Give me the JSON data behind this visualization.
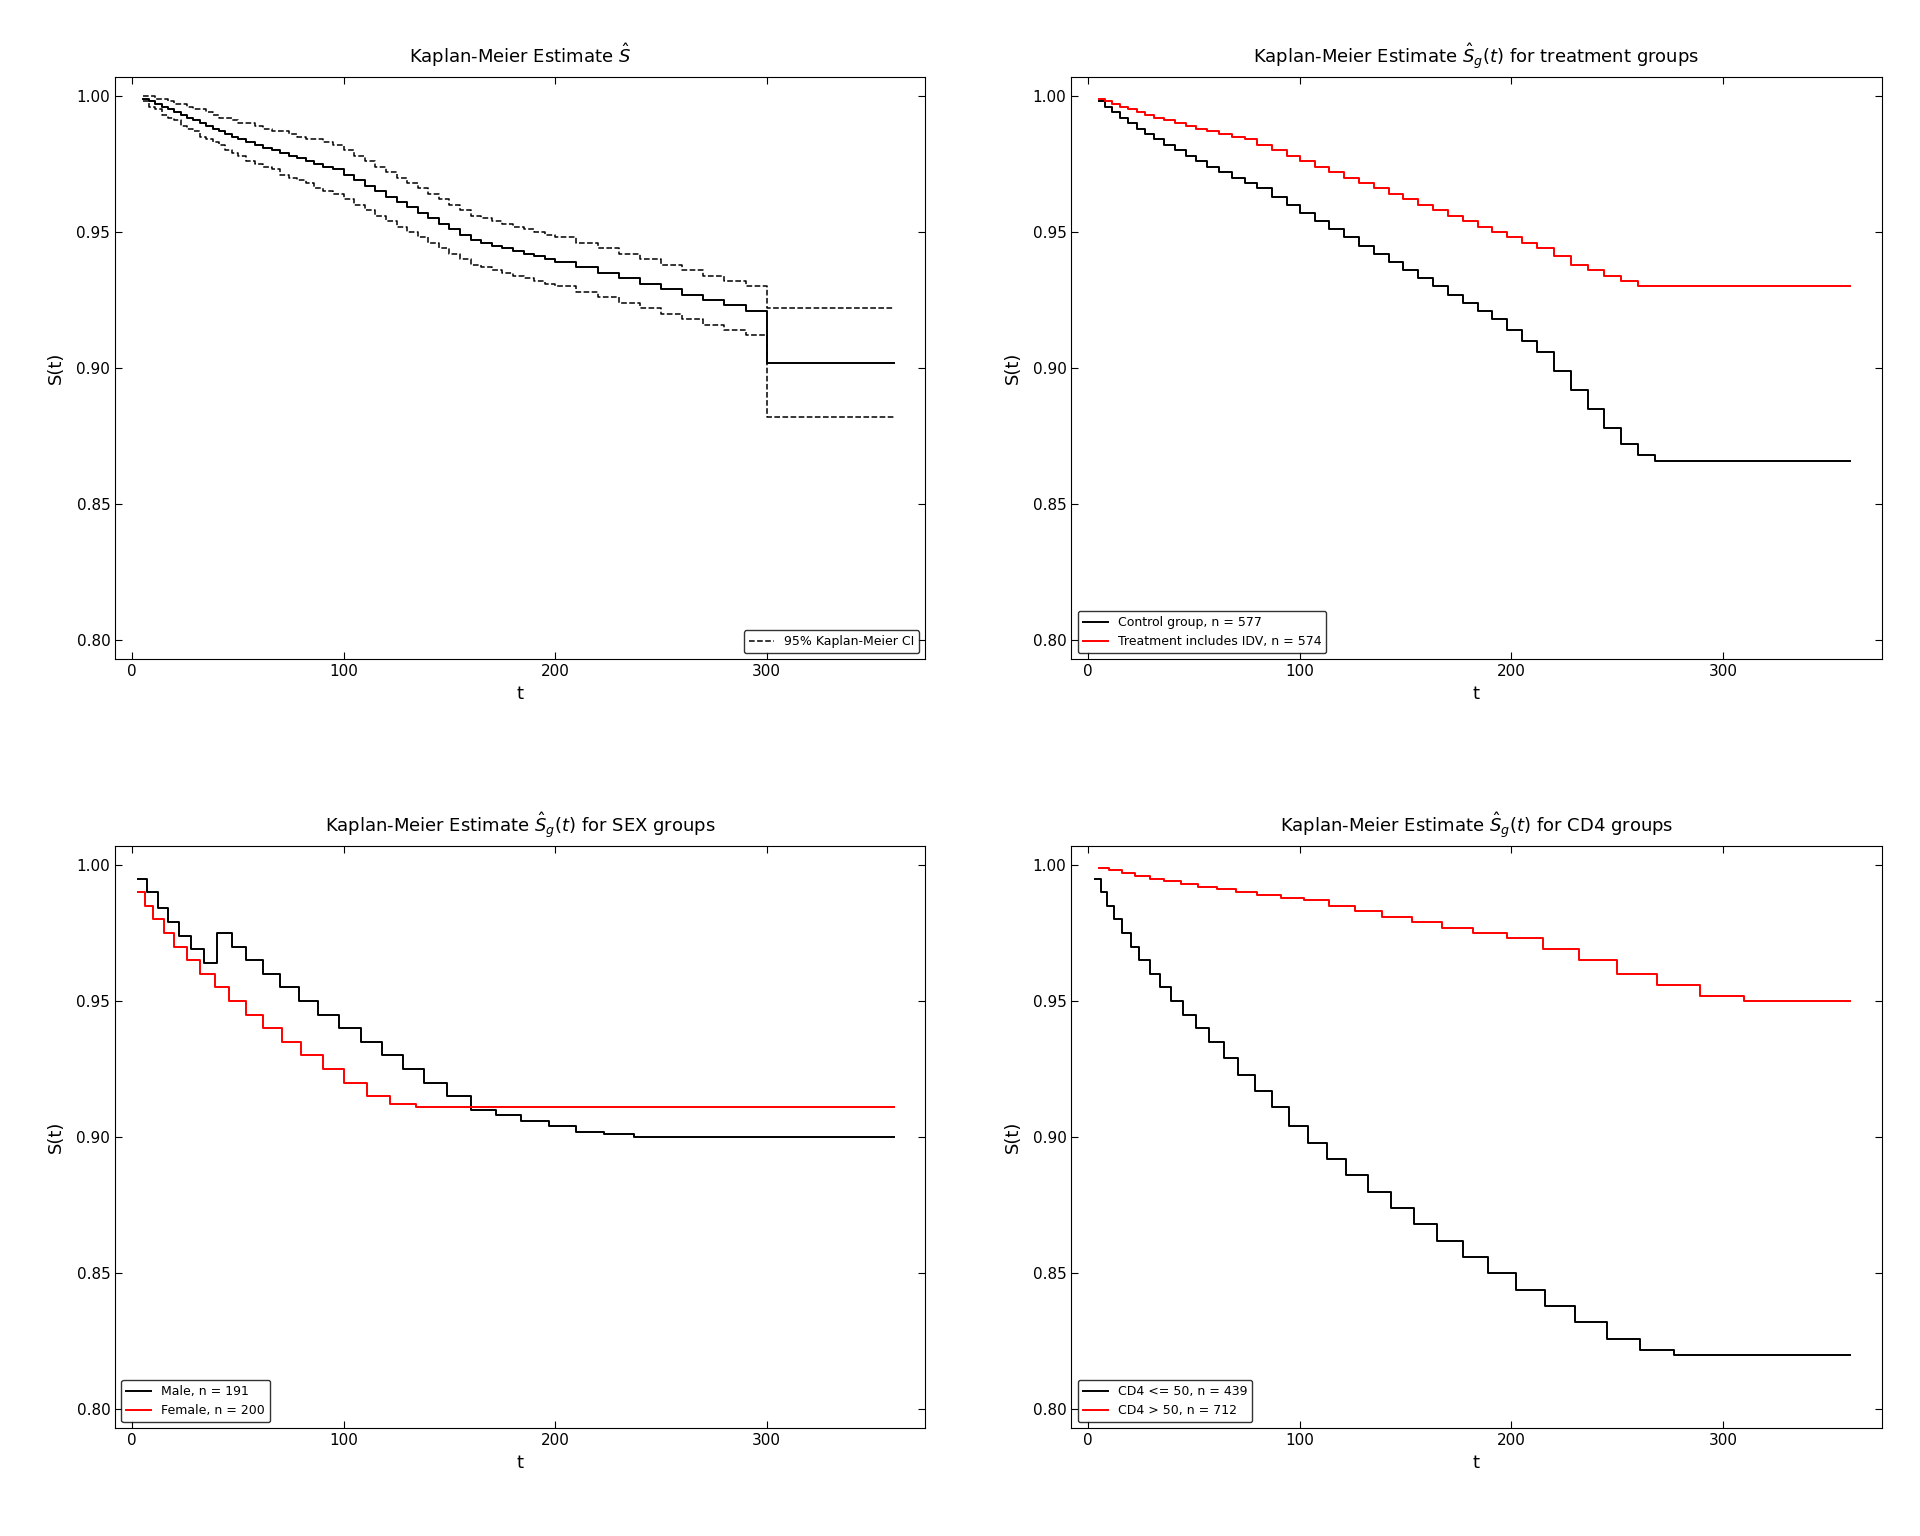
{
  "bg_color": "#ffffff",
  "ylim": [
    0.793,
    1.007
  ],
  "xlim": [
    -8,
    375
  ],
  "yticks": [
    0.8,
    0.85,
    0.9,
    0.95,
    1.0
  ],
  "xticks": [
    0,
    100,
    200,
    300
  ],
  "xlabel": "t",
  "ylabel": "S(t)",
  "plot1_title": "Kaplan-Meier Estimate $\\hat{S}$",
  "plot2_title": "Kaplan-Meier Estimate $\\hat{S}_g(t)$ for treatment groups",
  "plot3_title": "Kaplan-Meier Estimate $\\hat{S}_g(t)$ for SEX groups",
  "plot4_title": "Kaplan-Meier Estimate $\\hat{S}_g(t)$ for CD4 groups",
  "plot2_black_label": "Control group, n = 577",
  "plot2_red_label": "Treatment includes IDV, n = 574",
  "plot3_black_label": "Male, n = 191",
  "plot3_red_label": "Female, n = 200",
  "plot4_black_label": "CD4 <= 50, n = 439",
  "plot4_red_label": "CD4 > 50, n = 712",
  "legend1_ci_label": "95% Kaplan-Meier CI",
  "line_color_black": "#000000",
  "line_color_red": "#FF0000",
  "font_size_title": 13,
  "font_size_axis_label": 13,
  "font_size_tick": 11,
  "font_size_legend": 9,
  "p1_km_t": [
    5,
    8,
    11,
    14,
    17,
    20,
    23,
    26,
    29,
    32,
    35,
    38,
    41,
    44,
    47,
    50,
    54,
    58,
    62,
    66,
    70,
    74,
    78,
    82,
    86,
    90,
    95,
    100,
    105,
    110,
    115,
    120,
    125,
    130,
    135,
    140,
    145,
    150,
    155,
    160,
    165,
    170,
    175,
    180,
    185,
    190,
    195,
    200,
    210,
    220,
    230,
    240,
    250,
    260,
    270,
    280,
    290,
    300,
    310,
    320,
    330,
    340,
    350,
    360
  ],
  "p1_km_s": [
    0.999,
    0.998,
    0.997,
    0.996,
    0.995,
    0.994,
    0.993,
    0.992,
    0.991,
    0.99,
    0.989,
    0.988,
    0.987,
    0.986,
    0.985,
    0.984,
    0.983,
    0.982,
    0.981,
    0.98,
    0.979,
    0.978,
    0.977,
    0.976,
    0.975,
    0.974,
    0.973,
    0.971,
    0.969,
    0.967,
    0.965,
    0.963,
    0.961,
    0.959,
    0.957,
    0.955,
    0.953,
    0.951,
    0.949,
    0.947,
    0.946,
    0.945,
    0.944,
    0.943,
    0.942,
    0.941,
    0.94,
    0.939,
    0.937,
    0.935,
    0.933,
    0.931,
    0.929,
    0.927,
    0.925,
    0.923,
    0.921,
    0.902,
    0.902,
    0.902,
    0.902,
    0.902,
    0.902,
    0.902
  ],
  "p1_upper_s": [
    1.0,
    1.0,
    0.999,
    0.999,
    0.998,
    0.997,
    0.997,
    0.996,
    0.995,
    0.995,
    0.994,
    0.993,
    0.992,
    0.992,
    0.991,
    0.99,
    0.99,
    0.989,
    0.988,
    0.987,
    0.987,
    0.986,
    0.985,
    0.984,
    0.984,
    0.983,
    0.982,
    0.98,
    0.978,
    0.976,
    0.974,
    0.972,
    0.97,
    0.968,
    0.966,
    0.964,
    0.962,
    0.96,
    0.958,
    0.956,
    0.955,
    0.954,
    0.953,
    0.952,
    0.951,
    0.95,
    0.949,
    0.948,
    0.946,
    0.944,
    0.942,
    0.94,
    0.938,
    0.936,
    0.934,
    0.932,
    0.93,
    0.922,
    0.922,
    0.922,
    0.922,
    0.922,
    0.922,
    0.922
  ],
  "p1_lower_s": [
    0.998,
    0.996,
    0.995,
    0.993,
    0.992,
    0.991,
    0.989,
    0.988,
    0.987,
    0.985,
    0.984,
    0.983,
    0.982,
    0.98,
    0.979,
    0.978,
    0.976,
    0.975,
    0.974,
    0.973,
    0.971,
    0.97,
    0.969,
    0.968,
    0.966,
    0.965,
    0.964,
    0.962,
    0.96,
    0.958,
    0.956,
    0.954,
    0.952,
    0.95,
    0.948,
    0.946,
    0.944,
    0.942,
    0.94,
    0.938,
    0.937,
    0.936,
    0.935,
    0.934,
    0.933,
    0.932,
    0.931,
    0.93,
    0.928,
    0.926,
    0.924,
    0.922,
    0.92,
    0.918,
    0.916,
    0.914,
    0.912,
    0.882,
    0.882,
    0.882,
    0.882,
    0.882,
    0.882,
    0.882
  ],
  "p2_black_t": [
    5,
    8,
    11,
    15,
    19,
    23,
    27,
    31,
    36,
    41,
    46,
    51,
    56,
    62,
    68,
    74,
    80,
    87,
    94,
    100,
    107,
    114,
    121,
    128,
    135,
    142,
    149,
    156,
    163,
    170,
    177,
    184,
    191,
    198,
    205,
    212,
    220,
    228,
    236,
    244,
    252,
    260,
    268,
    276,
    360
  ],
  "p2_black_s": [
    0.998,
    0.996,
    0.994,
    0.992,
    0.99,
    0.988,
    0.986,
    0.984,
    0.982,
    0.98,
    0.978,
    0.976,
    0.974,
    0.972,
    0.97,
    0.968,
    0.966,
    0.963,
    0.96,
    0.957,
    0.954,
    0.951,
    0.948,
    0.945,
    0.942,
    0.939,
    0.936,
    0.933,
    0.93,
    0.927,
    0.924,
    0.921,
    0.918,
    0.914,
    0.91,
    0.906,
    0.899,
    0.892,
    0.885,
    0.878,
    0.872,
    0.868,
    0.866,
    0.866,
    0.866
  ],
  "p2_red_t": [
    5,
    8,
    11,
    15,
    19,
    23,
    27,
    31,
    36,
    41,
    46,
    51,
    56,
    62,
    68,
    74,
    80,
    87,
    94,
    100,
    107,
    114,
    121,
    128,
    135,
    142,
    149,
    156,
    163,
    170,
    177,
    184,
    191,
    198,
    205,
    212,
    220,
    228,
    236,
    244,
    252,
    260,
    280,
    300,
    360
  ],
  "p2_red_s": [
    0.999,
    0.998,
    0.997,
    0.996,
    0.995,
    0.994,
    0.993,
    0.992,
    0.991,
    0.99,
    0.989,
    0.988,
    0.987,
    0.986,
    0.985,
    0.984,
    0.982,
    0.98,
    0.978,
    0.976,
    0.974,
    0.972,
    0.97,
    0.968,
    0.966,
    0.964,
    0.962,
    0.96,
    0.958,
    0.956,
    0.954,
    0.952,
    0.95,
    0.948,
    0.946,
    0.944,
    0.941,
    0.938,
    0.936,
    0.934,
    0.932,
    0.93,
    0.93,
    0.93,
    0.93
  ],
  "p3_black_t": [
    3,
    7,
    12,
    17,
    22,
    28,
    34,
    40,
    47,
    54,
    62,
    70,
    79,
    88,
    98,
    108,
    118,
    128,
    138,
    149,
    160,
    172,
    184,
    197,
    210,
    223,
    237,
    251,
    266,
    282,
    298,
    360
  ],
  "p3_black_s": [
    0.995,
    0.99,
    0.984,
    0.979,
    0.974,
    0.969,
    0.964,
    0.975,
    0.97,
    0.965,
    0.96,
    0.955,
    0.95,
    0.945,
    0.94,
    0.935,
    0.93,
    0.925,
    0.92,
    0.915,
    0.91,
    0.908,
    0.906,
    0.904,
    0.902,
    0.901,
    0.9,
    0.9,
    0.9,
    0.9,
    0.9,
    0.9
  ],
  "p3_red_t": [
    3,
    6,
    10,
    15,
    20,
    26,
    32,
    39,
    46,
    54,
    62,
    71,
    80,
    90,
    100,
    111,
    122,
    134,
    147,
    160,
    173,
    187,
    202,
    360
  ],
  "p3_red_s": [
    0.99,
    0.985,
    0.98,
    0.975,
    0.97,
    0.965,
    0.96,
    0.955,
    0.95,
    0.945,
    0.94,
    0.935,
    0.93,
    0.925,
    0.92,
    0.915,
    0.912,
    0.911,
    0.911,
    0.911,
    0.911,
    0.911,
    0.911,
    0.911
  ],
  "p4_black_t": [
    3,
    6,
    9,
    12,
    16,
    20,
    24,
    29,
    34,
    39,
    45,
    51,
    57,
    64,
    71,
    79,
    87,
    95,
    104,
    113,
    122,
    132,
    143,
    154,
    165,
    177,
    189,
    202,
    216,
    230,
    245,
    261,
    277,
    294,
    312,
    360
  ],
  "p4_black_s": [
    0.995,
    0.99,
    0.985,
    0.98,
    0.975,
    0.97,
    0.965,
    0.96,
    0.955,
    0.95,
    0.945,
    0.94,
    0.935,
    0.929,
    0.923,
    0.917,
    0.911,
    0.904,
    0.898,
    0.892,
    0.886,
    0.88,
    0.874,
    0.868,
    0.862,
    0.856,
    0.85,
    0.844,
    0.838,
    0.832,
    0.826,
    0.822,
    0.82,
    0.82,
    0.82,
    0.82
  ],
  "p4_red_t": [
    5,
    10,
    16,
    22,
    29,
    36,
    44,
    52,
    61,
    70,
    80,
    91,
    102,
    114,
    126,
    139,
    153,
    167,
    182,
    198,
    215,
    232,
    250,
    269,
    289,
    310,
    360
  ],
  "p4_red_s": [
    0.999,
    0.998,
    0.997,
    0.996,
    0.995,
    0.994,
    0.993,
    0.992,
    0.991,
    0.99,
    0.989,
    0.988,
    0.987,
    0.985,
    0.983,
    0.981,
    0.979,
    0.977,
    0.975,
    0.973,
    0.969,
    0.965,
    0.96,
    0.956,
    0.952,
    0.95,
    0.95
  ]
}
